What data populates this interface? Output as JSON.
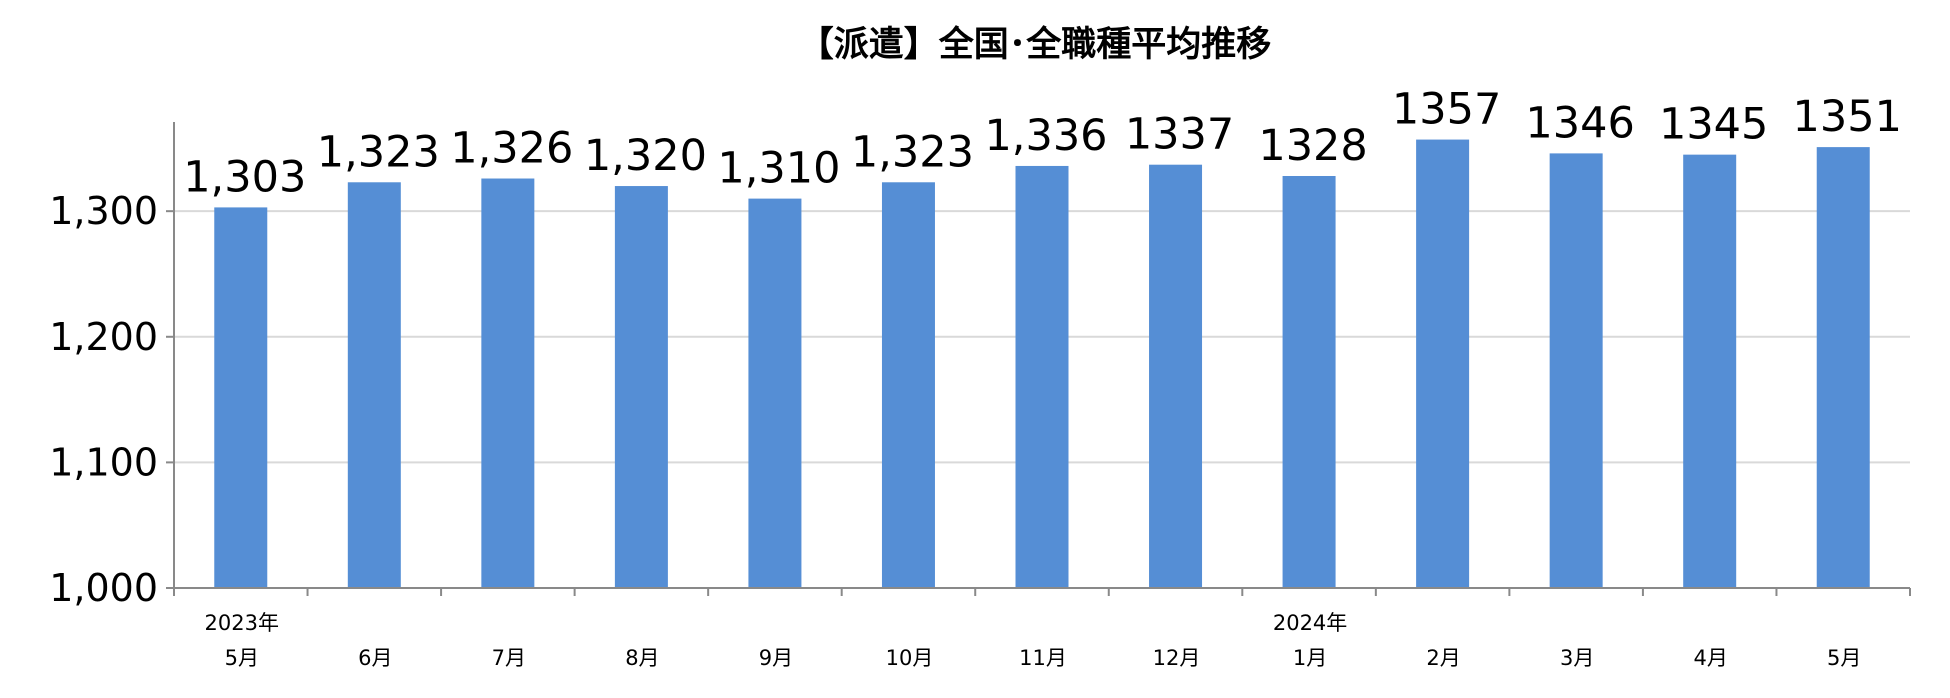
{
  "chart_data": {
    "type": "bar",
    "title": "【派遣】全国･全職種平均推移",
    "xlabel": "",
    "ylabel": "",
    "categories": [
      "5月",
      "6月",
      "7月",
      "8月",
      "9月",
      "10月",
      "11月",
      "12月",
      "1月",
      "2月",
      "3月",
      "4月",
      "5月"
    ],
    "year_labels": [
      "2023年",
      "",
      "",
      "",
      "",
      "",
      "",
      "",
      "2024年",
      "",
      "",
      "",
      ""
    ],
    "values": [
      1303,
      1323,
      1326,
      1320,
      1310,
      1323,
      1336,
      1337,
      1328,
      1357,
      1346,
      1345,
      1351
    ],
    "data_labels": [
      "1,303",
      "1,323",
      "1,326",
      "1,320",
      "1,310",
      "1,323",
      "1,336",
      "1337",
      "1328",
      "1357",
      "1346",
      "1345",
      "1351"
    ],
    "ylim": [
      1000,
      1350
    ],
    "yticks": [
      1000,
      1100,
      1200,
      1300
    ],
    "ytick_labels": [
      "1,000",
      "1,100",
      "1,200",
      "1,300"
    ],
    "grid": true,
    "legend": "none",
    "colors": {
      "bar": "#558ED5",
      "grid": "#D9D9D9",
      "axis": "#898989",
      "text": "#000000"
    }
  }
}
